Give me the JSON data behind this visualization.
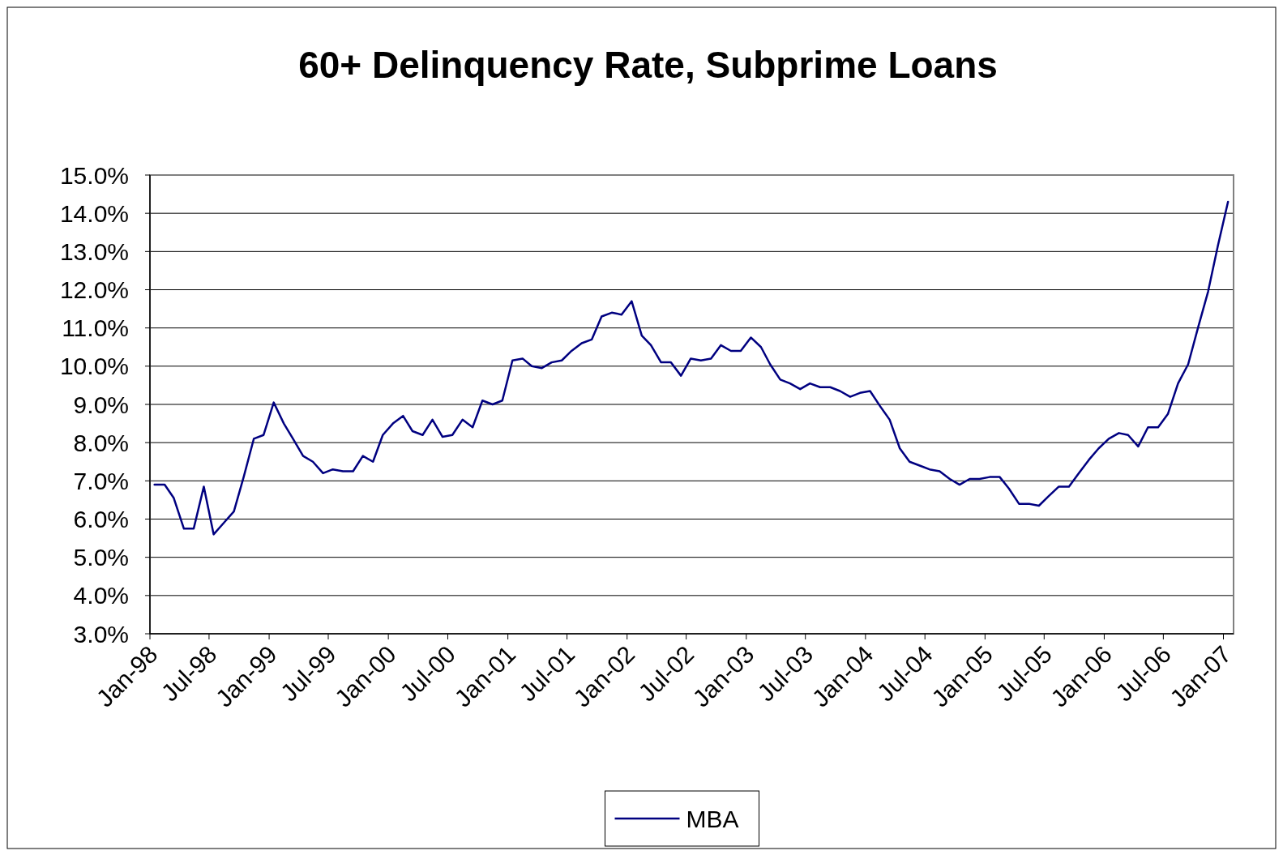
{
  "chart_data": {
    "type": "line",
    "title": "60+ Delinquency Rate, Subprime Loans",
    "x": [
      "1998-01-15",
      "1998-02-15",
      "1998-03-15",
      "1998-04-15",
      "1998-05-15",
      "1998-06-15",
      "1998-07-15",
      "1998-08-15",
      "1998-09-15",
      "1998-10-15",
      "1998-11-15",
      "1998-12-15",
      "1999-01-15",
      "1999-02-15",
      "1999-03-15",
      "1999-04-15",
      "1999-05-15",
      "1999-06-15",
      "1999-07-15",
      "1999-08-15",
      "1999-09-15",
      "1999-10-15",
      "1999-11-15",
      "1999-12-15",
      "2000-01-15",
      "2000-02-15",
      "2000-03-15",
      "2000-04-15",
      "2000-05-15",
      "2000-06-15",
      "2000-07-15",
      "2000-08-15",
      "2000-09-15",
      "2000-10-15",
      "2000-11-15",
      "2000-12-15",
      "2001-01-15",
      "2001-02-15",
      "2001-03-15",
      "2001-04-15",
      "2001-05-15",
      "2001-06-15",
      "2001-07-15",
      "2001-08-15",
      "2001-09-15",
      "2001-10-15",
      "2001-11-15",
      "2001-12-15",
      "2002-01-15",
      "2002-02-15",
      "2002-03-15",
      "2002-04-15",
      "2002-05-15",
      "2002-06-15",
      "2002-07-15",
      "2002-08-15",
      "2002-09-15",
      "2002-10-15",
      "2002-11-15",
      "2002-12-15",
      "2003-01-15",
      "2003-02-15",
      "2003-03-15",
      "2003-04-15",
      "2003-05-15",
      "2003-06-15",
      "2003-07-15",
      "2003-08-15",
      "2003-09-15",
      "2003-10-15",
      "2003-11-15",
      "2003-12-15",
      "2004-01-15",
      "2004-02-15",
      "2004-03-15",
      "2004-04-15",
      "2004-05-15",
      "2004-06-15",
      "2004-07-15",
      "2004-08-15",
      "2004-09-15",
      "2004-10-15",
      "2004-11-15",
      "2004-12-15",
      "2005-01-15",
      "2005-02-15",
      "2005-03-15",
      "2005-04-15",
      "2005-05-15",
      "2005-06-15",
      "2005-07-15",
      "2005-08-15",
      "2005-09-15",
      "2005-10-15",
      "2005-11-15",
      "2005-12-15",
      "2006-01-15",
      "2006-02-15",
      "2006-03-15",
      "2006-04-15",
      "2006-05-15",
      "2006-06-15",
      "2006-07-15",
      "2006-08-15",
      "2006-09-15",
      "2006-10-15",
      "2006-11-15",
      "2006-12-15",
      "2007-01-15"
    ],
    "series": [
      {
        "name": "MBA",
        "color": "#000080",
        "values": [
          6.9,
          6.9,
          6.55,
          5.75,
          5.75,
          6.85,
          5.6,
          5.9,
          6.2,
          7.1,
          8.1,
          8.2,
          9.05,
          8.5,
          8.1,
          7.65,
          7.5,
          7.2,
          7.3,
          7.25,
          7.25,
          7.65,
          7.5,
          8.2,
          8.5,
          8.7,
          8.3,
          8.2,
          8.6,
          8.15,
          8.2,
          8.6,
          8.4,
          9.1,
          9.0,
          9.1,
          10.15,
          10.2,
          10.0,
          9.95,
          10.1,
          10.15,
          10.4,
          10.6,
          10.7,
          11.3,
          11.4,
          11.35,
          11.7,
          10.8,
          10.55,
          10.1,
          10.1,
          9.75,
          10.2,
          10.15,
          10.2,
          10.55,
          10.4,
          10.4,
          10.75,
          10.5,
          10.05,
          9.65,
          9.55,
          9.4,
          9.55,
          9.45,
          9.45,
          9.35,
          9.2,
          9.3,
          9.35,
          8.95,
          8.6,
          7.85,
          7.5,
          7.4,
          7.3,
          7.25,
          7.05,
          6.9,
          7.05,
          7.05,
          7.1,
          7.1,
          6.8,
          6.4,
          6.4,
          6.35,
          6.6,
          6.85,
          6.85,
          7.2,
          7.55,
          7.85,
          8.1,
          8.25,
          8.2,
          7.9,
          8.4,
          8.4,
          8.75,
          9.55,
          10.05,
          11.0,
          11.95,
          13.15,
          14.3
        ]
      }
    ],
    "xlim": [
      "1998-01-01",
      "2007-02-01"
    ],
    "xticks": [
      {
        "value": "1998-01-01",
        "label": "Jan-98"
      },
      {
        "value": "1998-07-01",
        "label": "Jul-98"
      },
      {
        "value": "1999-01-01",
        "label": "Jan-99"
      },
      {
        "value": "1999-07-01",
        "label": "Jul-99"
      },
      {
        "value": "2000-01-01",
        "label": "Jan-00"
      },
      {
        "value": "2000-07-01",
        "label": "Jul-00"
      },
      {
        "value": "2001-01-01",
        "label": "Jan-01"
      },
      {
        "value": "2001-07-01",
        "label": "Jul-01"
      },
      {
        "value": "2002-01-01",
        "label": "Jan-02"
      },
      {
        "value": "2002-07-01",
        "label": "Jul-02"
      },
      {
        "value": "2003-01-01",
        "label": "Jan-03"
      },
      {
        "value": "2003-07-01",
        "label": "Jul-03"
      },
      {
        "value": "2004-01-01",
        "label": "Jan-04"
      },
      {
        "value": "2004-07-01",
        "label": "Jul-04"
      },
      {
        "value": "2005-01-01",
        "label": "Jan-05"
      },
      {
        "value": "2005-07-01",
        "label": "Jul-05"
      },
      {
        "value": "2006-01-01",
        "label": "Jan-06"
      },
      {
        "value": "2006-07-01",
        "label": "Jul-06"
      },
      {
        "value": "2007-01-01",
        "label": "Jan-07"
      }
    ],
    "ylim": [
      3,
      15
    ],
    "yticks": [
      {
        "value": 3,
        "label": "3.0%"
      },
      {
        "value": 4,
        "label": "4.0%"
      },
      {
        "value": 5,
        "label": "5.0%"
      },
      {
        "value": 6,
        "label": "6.0%"
      },
      {
        "value": 7,
        "label": "7.0%"
      },
      {
        "value": 8,
        "label": "8.0%"
      },
      {
        "value": 9,
        "label": "9.0%"
      },
      {
        "value": 10,
        "label": "10.0%"
      },
      {
        "value": 11,
        "label": "11.0%"
      },
      {
        "value": 12,
        "label": "12.0%"
      },
      {
        "value": 13,
        "label": "13.0%"
      },
      {
        "value": 14,
        "label": "14.0%"
      },
      {
        "value": 15,
        "label": "15.0%"
      }
    ],
    "grid": "y",
    "legend": "bottom",
    "marker": "none",
    "line_style": "solid"
  }
}
